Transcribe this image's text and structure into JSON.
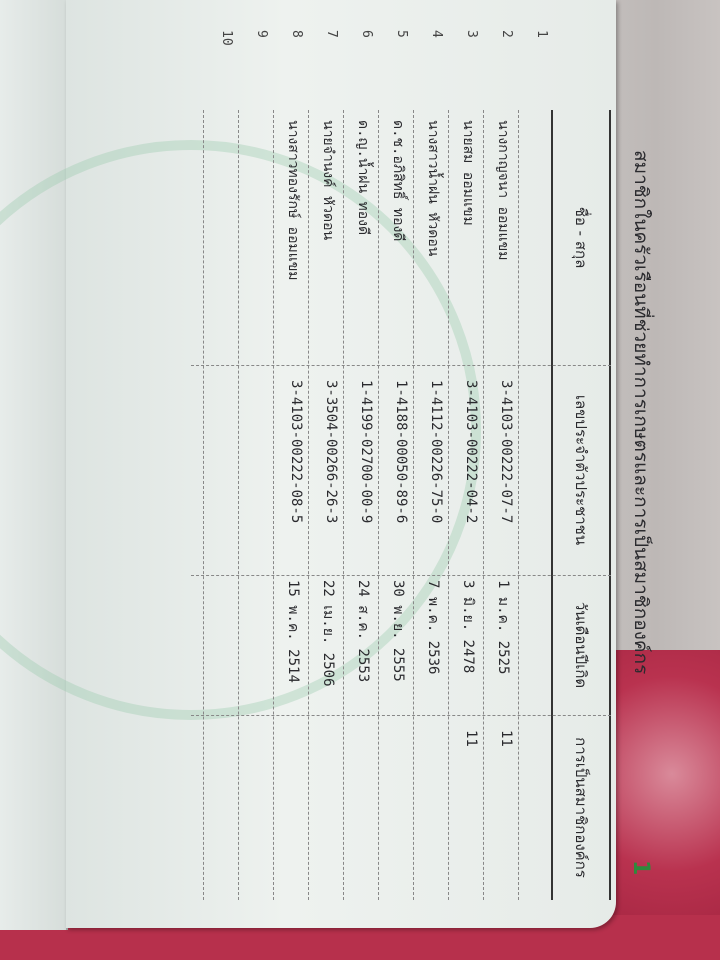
{
  "document": {
    "title": "สมาชิกในครัวเรือนที่ช่วยทำการเกษตรและการเป็นสมาชิกองค์กร",
    "page_number": "1",
    "headers": [
      "ชื่อ - สกุล",
      "เลขประจำตัวประชาชน",
      "วันเดือนปีเกิด",
      "การเป็นสมาชิกองค์กร"
    ],
    "rows": [
      {
        "num": "1",
        "name": "",
        "id": "",
        "dob": "",
        "member": ""
      },
      {
        "num": "2",
        "name": "นางกาญจนา ออมแขม",
        "id": "3-4103-00222-07-7",
        "dob": "1 ม.ค. 2525",
        "member": "11"
      },
      {
        "num": "3",
        "name": "นายสม ออมแขม",
        "id": "3-4103-00222-04-2",
        "dob": "3 มิ.ย. 2478",
        "member": "11"
      },
      {
        "num": "4",
        "name": "นางสาวน้ำฝน หัวดอน",
        "id": "1-4112-00226-75-0",
        "dob": "7 พ.ค. 2536",
        "member": ""
      },
      {
        "num": "5",
        "name": "ด.ช.อภิสิทธิ์ ทองดี",
        "id": "1-4188-00050-89-6",
        "dob": "30 พ.ย. 2555",
        "member": ""
      },
      {
        "num": "6",
        "name": "ด.ญ.น้ำฝน ทองดี",
        "id": "1-4199-02700-00-9",
        "dob": "24 ส.ค. 2553",
        "member": ""
      },
      {
        "num": "7",
        "name": "นายจำนงค์ หัวดอน",
        "id": "3-3504-00266-26-3",
        "dob": "22 เม.ย. 2506",
        "member": ""
      },
      {
        "num": "8",
        "name": "นางสาวทองรักษ์ ออมแขม",
        "id": "3-4103-00222-08-5",
        "dob": "15 พ.ค. 2514",
        "member": ""
      },
      {
        "num": "9",
        "name": "",
        "id": "",
        "dob": "",
        "member": ""
      },
      {
        "num": "10",
        "name": "",
        "id": "",
        "dob": "",
        "member": ""
      }
    ]
  }
}
